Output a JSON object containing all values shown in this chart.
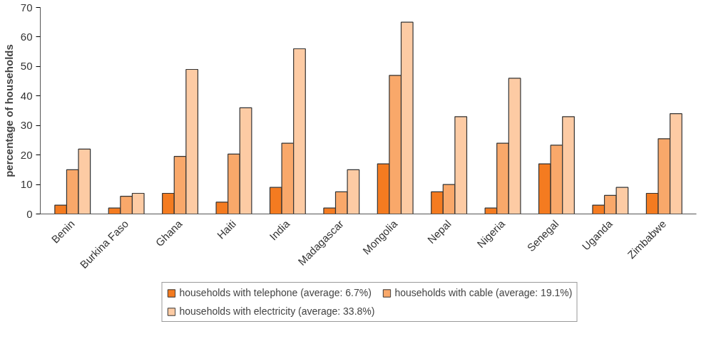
{
  "chart_data": {
    "type": "bar",
    "ylabel": "percentage of households",
    "categories": [
      "Benin",
      "Burkina Faso",
      "Ghana",
      "Haiti",
      "India",
      "Madagascar",
      "Mongolia",
      "Nepal",
      "Nigeria",
      "Senegal",
      "Uganda",
      "Zimbabwe"
    ],
    "series": [
      {
        "name": "households with telephone (average: 6.7%)",
        "color": "#f47b20",
        "values": [
          3,
          2,
          7,
          4,
          9,
          2,
          17,
          7.5,
          2,
          17,
          3,
          7
        ]
      },
      {
        "name": "households with cable (average: 19.1%)",
        "color": "#f9a86a",
        "values": [
          15,
          6,
          19.5,
          20.3,
          24,
          7.5,
          47,
          10,
          24,
          23.3,
          6.3,
          25.5
        ]
      },
      {
        "name": "households with electricity (average: 33.8%)",
        "color": "#fdcba4",
        "values": [
          22,
          7,
          49,
          36,
          56,
          15,
          65,
          33,
          46,
          33,
          9,
          34
        ]
      }
    ],
    "ylim": [
      0,
      70
    ],
    "yticks": [
      0,
      10,
      20,
      30,
      40,
      50,
      60,
      70
    ],
    "grid": false,
    "legend": "bottom"
  }
}
